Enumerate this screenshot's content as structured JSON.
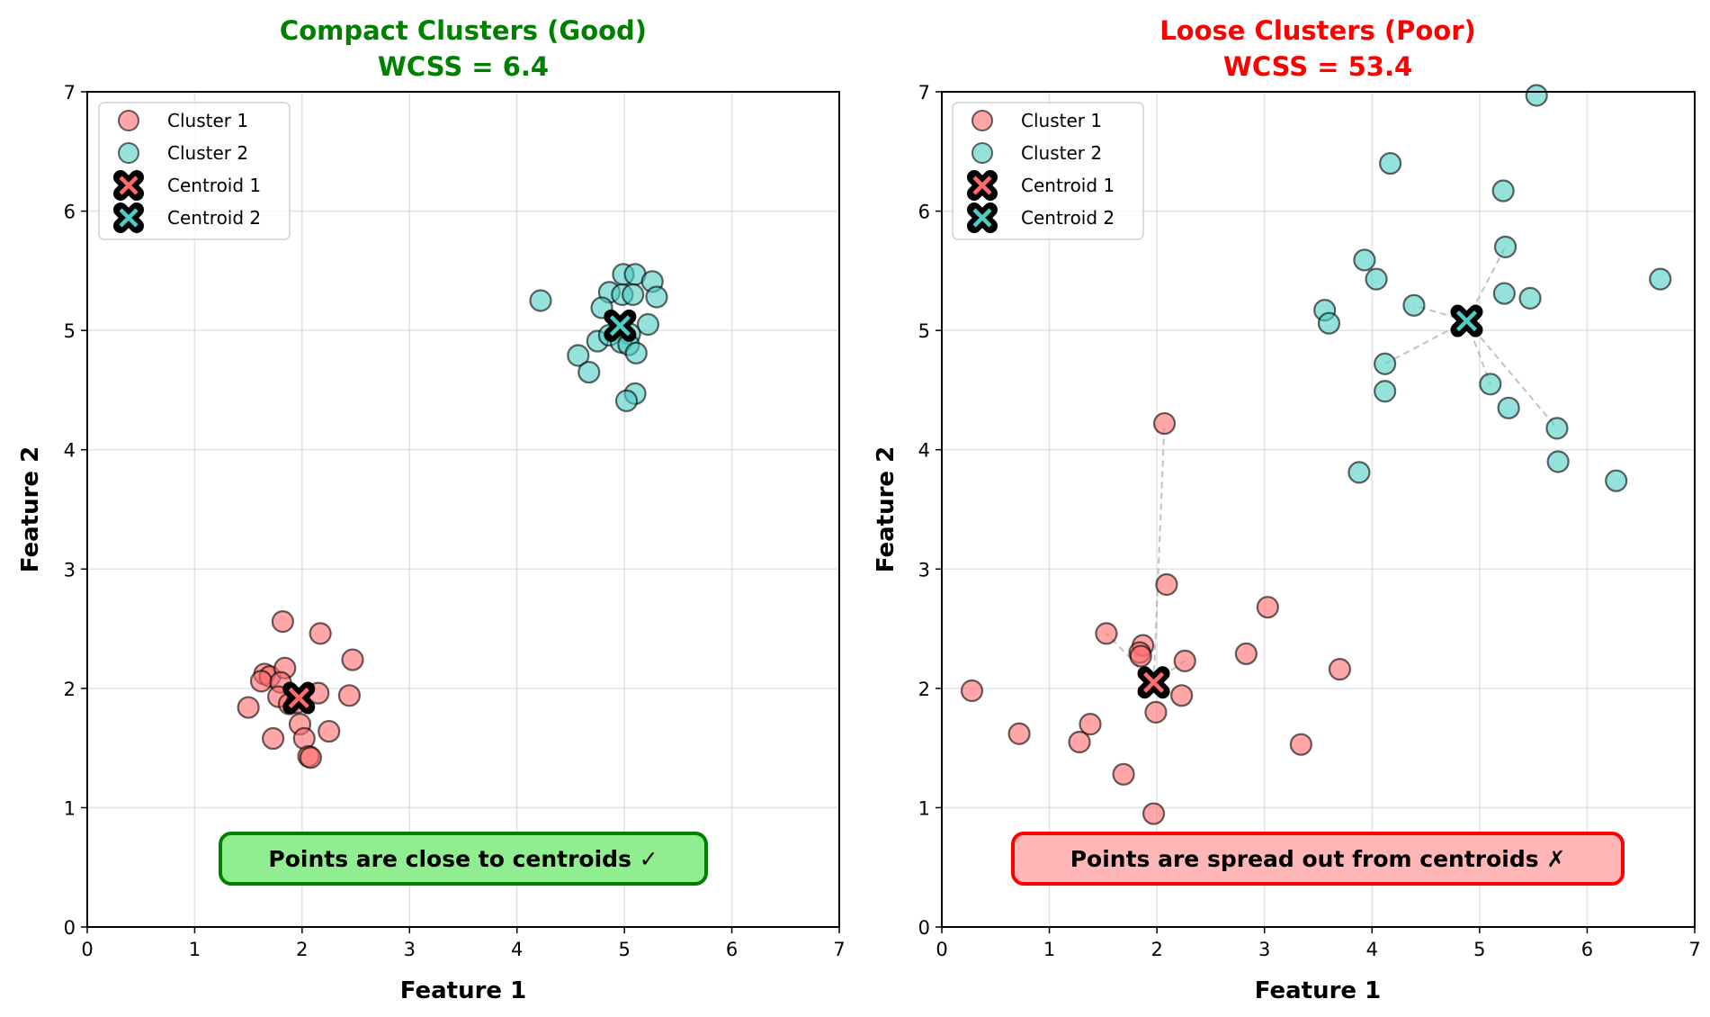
{
  "chart_data": [
    {
      "type": "scatter",
      "title_line1": "Compact Clusters (Good)",
      "title_line2": "WCSS = 6.4",
      "title_color": "#008000",
      "xlabel": "Feature 1",
      "ylabel": "Feature 2",
      "xlim": [
        0,
        7
      ],
      "ylim": [
        0,
        7
      ],
      "xticks": [
        "0",
        "1",
        "2",
        "3",
        "4",
        "5",
        "6",
        "7"
      ],
      "yticks": [
        "0",
        "1",
        "2",
        "3",
        "4",
        "5",
        "6",
        "7"
      ],
      "grid": true,
      "legend_position": "top-left",
      "legend": [
        "Cluster 1",
        "Cluster 2",
        "Centroid 1",
        "Centroid 2"
      ],
      "annotation": "Points are close to centroids ✓",
      "annotation_fill": "#90ee90",
      "annotation_edge": "#008000",
      "series": [
        {
          "name": "Cluster 1",
          "color": "#ff6b6b",
          "points": [
            [
              1.82,
              2.56
            ],
            [
              2.17,
              2.46
            ],
            [
              2.47,
              2.24
            ],
            [
              1.65,
              2.12
            ],
            [
              1.7,
              2.1
            ],
            [
              1.62,
              2.06
            ],
            [
              1.84,
              2.17
            ],
            [
              1.8,
              2.05
            ],
            [
              1.78,
              1.93
            ],
            [
              1.88,
              1.87
            ],
            [
              2.15,
              1.96
            ],
            [
              2.44,
              1.94
            ],
            [
              1.5,
              1.84
            ],
            [
              1.98,
              1.7
            ],
            [
              2.25,
              1.64
            ],
            [
              1.73,
              1.58
            ],
            [
              2.02,
              1.58
            ],
            [
              2.06,
              1.43
            ],
            [
              2.08,
              1.42
            ],
            [
              1.95,
              1.88
            ]
          ]
        },
        {
          "name": "Cluster 2",
          "color": "#4ecdc4",
          "points": [
            [
              4.22,
              5.25
            ],
            [
              4.86,
              5.32
            ],
            [
              4.99,
              5.47
            ],
            [
              5.1,
              5.47
            ],
            [
              5.26,
              5.41
            ],
            [
              5.3,
              5.28
            ],
            [
              4.79,
              5.19
            ],
            [
              4.98,
              5.3
            ],
            [
              5.08,
              5.3
            ],
            [
              4.75,
              4.91
            ],
            [
              4.86,
              4.96
            ],
            [
              5.22,
              5.05
            ],
            [
              5.05,
              4.97
            ],
            [
              4.97,
              4.9
            ],
            [
              5.04,
              4.88
            ],
            [
              5.11,
              4.81
            ],
            [
              4.57,
              4.79
            ],
            [
              4.67,
              4.65
            ],
            [
              5.1,
              4.47
            ],
            [
              5.02,
              4.41
            ]
          ]
        }
      ],
      "centroids": [
        {
          "name": "Centroid 1",
          "color": "#ff6b6b",
          "x": 1.97,
          "y": 1.92
        },
        {
          "name": "Centroid 2",
          "color": "#4ecdc4",
          "x": 4.96,
          "y": 5.04
        }
      ]
    },
    {
      "type": "scatter",
      "title_line1": "Loose Clusters (Poor)",
      "title_line2": "WCSS = 53.4",
      "title_color": "#ff0000",
      "xlabel": "Feature 1",
      "ylabel": "Feature 2",
      "xlim": [
        0,
        7
      ],
      "ylim": [
        0,
        7
      ],
      "xticks": [
        "0",
        "1",
        "2",
        "3",
        "4",
        "5",
        "6",
        "7"
      ],
      "yticks": [
        "0",
        "1",
        "2",
        "3",
        "4",
        "5",
        "6",
        "7"
      ],
      "grid": true,
      "legend_position": "top-left",
      "legend": [
        "Cluster 1",
        "Cluster 2",
        "Centroid 1",
        "Centroid 2"
      ],
      "annotation": "Points are spread out from centroids ✗",
      "annotation_fill": "#ffb6b6",
      "annotation_edge": "#ff0000",
      "series": [
        {
          "name": "Cluster 1",
          "color": "#ff6b6b",
          "points": [
            [
              2.07,
              4.22
            ],
            [
              2.09,
              2.87
            ],
            [
              3.03,
              2.68
            ],
            [
              1.53,
              2.46
            ],
            [
              1.87,
              2.36
            ],
            [
              1.84,
              2.3
            ],
            [
              1.85,
              2.27
            ],
            [
              2.26,
              2.23
            ],
            [
              2.83,
              2.29
            ],
            [
              3.7,
              2.16
            ],
            [
              0.28,
              1.98
            ],
            [
              2.23,
              1.94
            ],
            [
              1.99,
              1.8
            ],
            [
              0.72,
              1.62
            ],
            [
              1.38,
              1.7
            ],
            [
              1.28,
              1.55
            ],
            [
              3.34,
              1.53
            ],
            [
              1.69,
              1.28
            ],
            [
              1.97,
              0.95
            ]
          ]
        },
        {
          "name": "Cluster 2",
          "color": "#4ecdc4",
          "points": [
            [
              5.53,
              6.97
            ],
            [
              4.17,
              6.4
            ],
            [
              5.22,
              6.17
            ],
            [
              5.24,
              5.7
            ],
            [
              3.93,
              5.59
            ],
            [
              4.04,
              5.43
            ],
            [
              4.39,
              5.21
            ],
            [
              3.56,
              5.17
            ],
            [
              3.6,
              5.06
            ],
            [
              5.23,
              5.31
            ],
            [
              5.47,
              5.27
            ],
            [
              6.68,
              5.43
            ],
            [
              4.12,
              4.72
            ],
            [
              4.12,
              4.49
            ],
            [
              5.1,
              4.55
            ],
            [
              5.27,
              4.35
            ],
            [
              5.72,
              4.18
            ],
            [
              3.88,
              3.81
            ],
            [
              5.73,
              3.9
            ],
            [
              6.27,
              3.74
            ]
          ]
        }
      ],
      "centroids": [
        {
          "name": "Centroid 1",
          "color": "#ff6b6b",
          "x": 1.97,
          "y": 2.05
        },
        {
          "name": "Centroid 2",
          "color": "#4ecdc4",
          "x": 4.88,
          "y": 5.08
        }
      ],
      "distance_lines": [
        {
          "cluster": 1,
          "to": [
            2.07,
            4.22
          ]
        },
        {
          "cluster": 1,
          "to": [
            1.53,
            2.46
          ]
        },
        {
          "cluster": 1,
          "to": [
            2.26,
            2.23
          ]
        },
        {
          "cluster": 2,
          "to": [
            5.24,
            5.7
          ]
        },
        {
          "cluster": 2,
          "to": [
            4.39,
            5.21
          ]
        },
        {
          "cluster": 2,
          "to": [
            4.12,
            4.72
          ]
        },
        {
          "cluster": 2,
          "to": [
            5.1,
            4.55
          ]
        },
        {
          "cluster": 2,
          "to": [
            5.72,
            4.18
          ]
        }
      ]
    }
  ]
}
